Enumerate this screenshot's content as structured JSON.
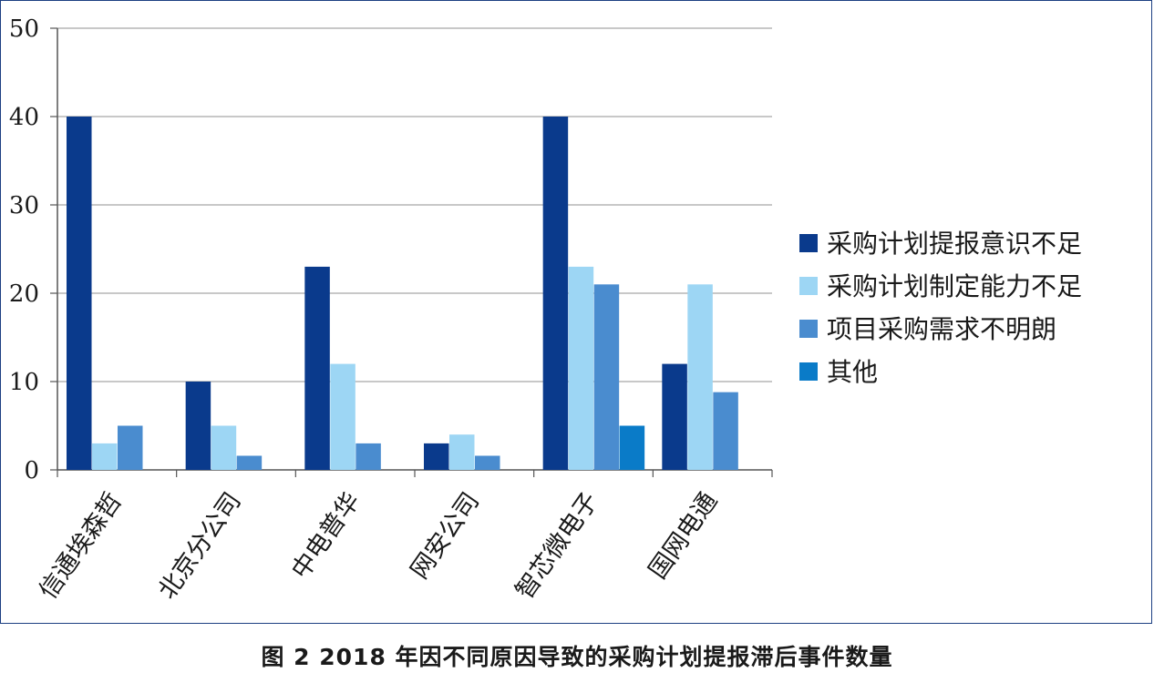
{
  "chart_data": {
    "type": "bar",
    "categories": [
      "信通埃森哲",
      "北京分公司",
      "中电普华",
      "网安公司",
      "智芯微电子",
      "国网电通"
    ],
    "series": [
      {
        "name": "采购计划提报意识不足",
        "color": "#0a3a8c",
        "values": [
          40,
          10,
          23,
          3,
          40,
          12
        ]
      },
      {
        "name": "采购计划制定能力不足",
        "color": "#9dd6f4",
        "values": [
          3,
          5,
          12,
          4,
          23,
          21
        ]
      },
      {
        "name": "项目采购需求不明朗",
        "color": "#4a8ccf",
        "values": [
          5,
          1.6,
          3,
          1.6,
          21,
          8.8
        ]
      },
      {
        "name": "其他",
        "color": "#0a7bc8",
        "values": [
          0,
          0,
          0,
          0,
          5,
          0
        ]
      }
    ],
    "yticks": [
      "0",
      "10",
      "20",
      "30",
      "40",
      "50"
    ],
    "ylim": [
      0,
      50
    ],
    "grid": true,
    "legend": "right",
    "xlabel": "",
    "ylabel": ""
  },
  "caption": "图 2  2018 年因不同原因导致的采购计划提报滞后事件数量"
}
